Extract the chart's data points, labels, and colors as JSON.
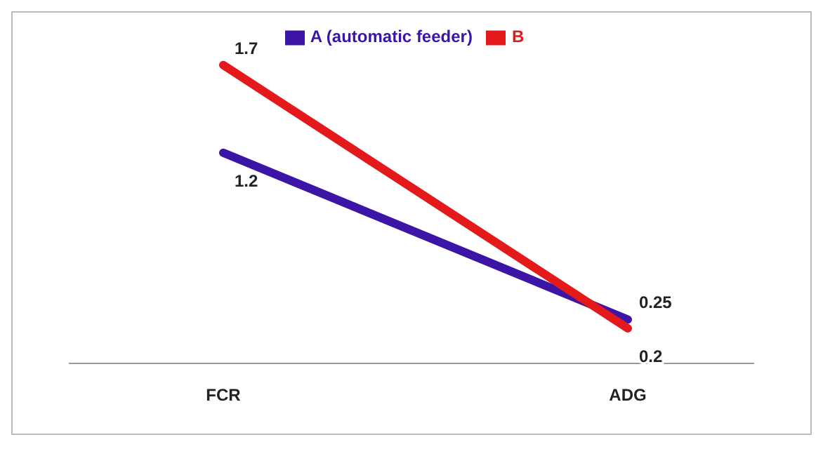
{
  "chart_data": {
    "type": "line",
    "categories": [
      "FCR",
      "ADG"
    ],
    "series": [
      {
        "name": "A (automatic feeder)",
        "color": "#3c14a6",
        "values": [
          1.2,
          0.25
        ]
      },
      {
        "name": "B",
        "color": "#e3191b",
        "values": [
          1.7,
          0.2
        ]
      }
    ],
    "data_labels": true,
    "legend": "top",
    "grid": false,
    "marker": "none",
    "line_style": "solid"
  }
}
